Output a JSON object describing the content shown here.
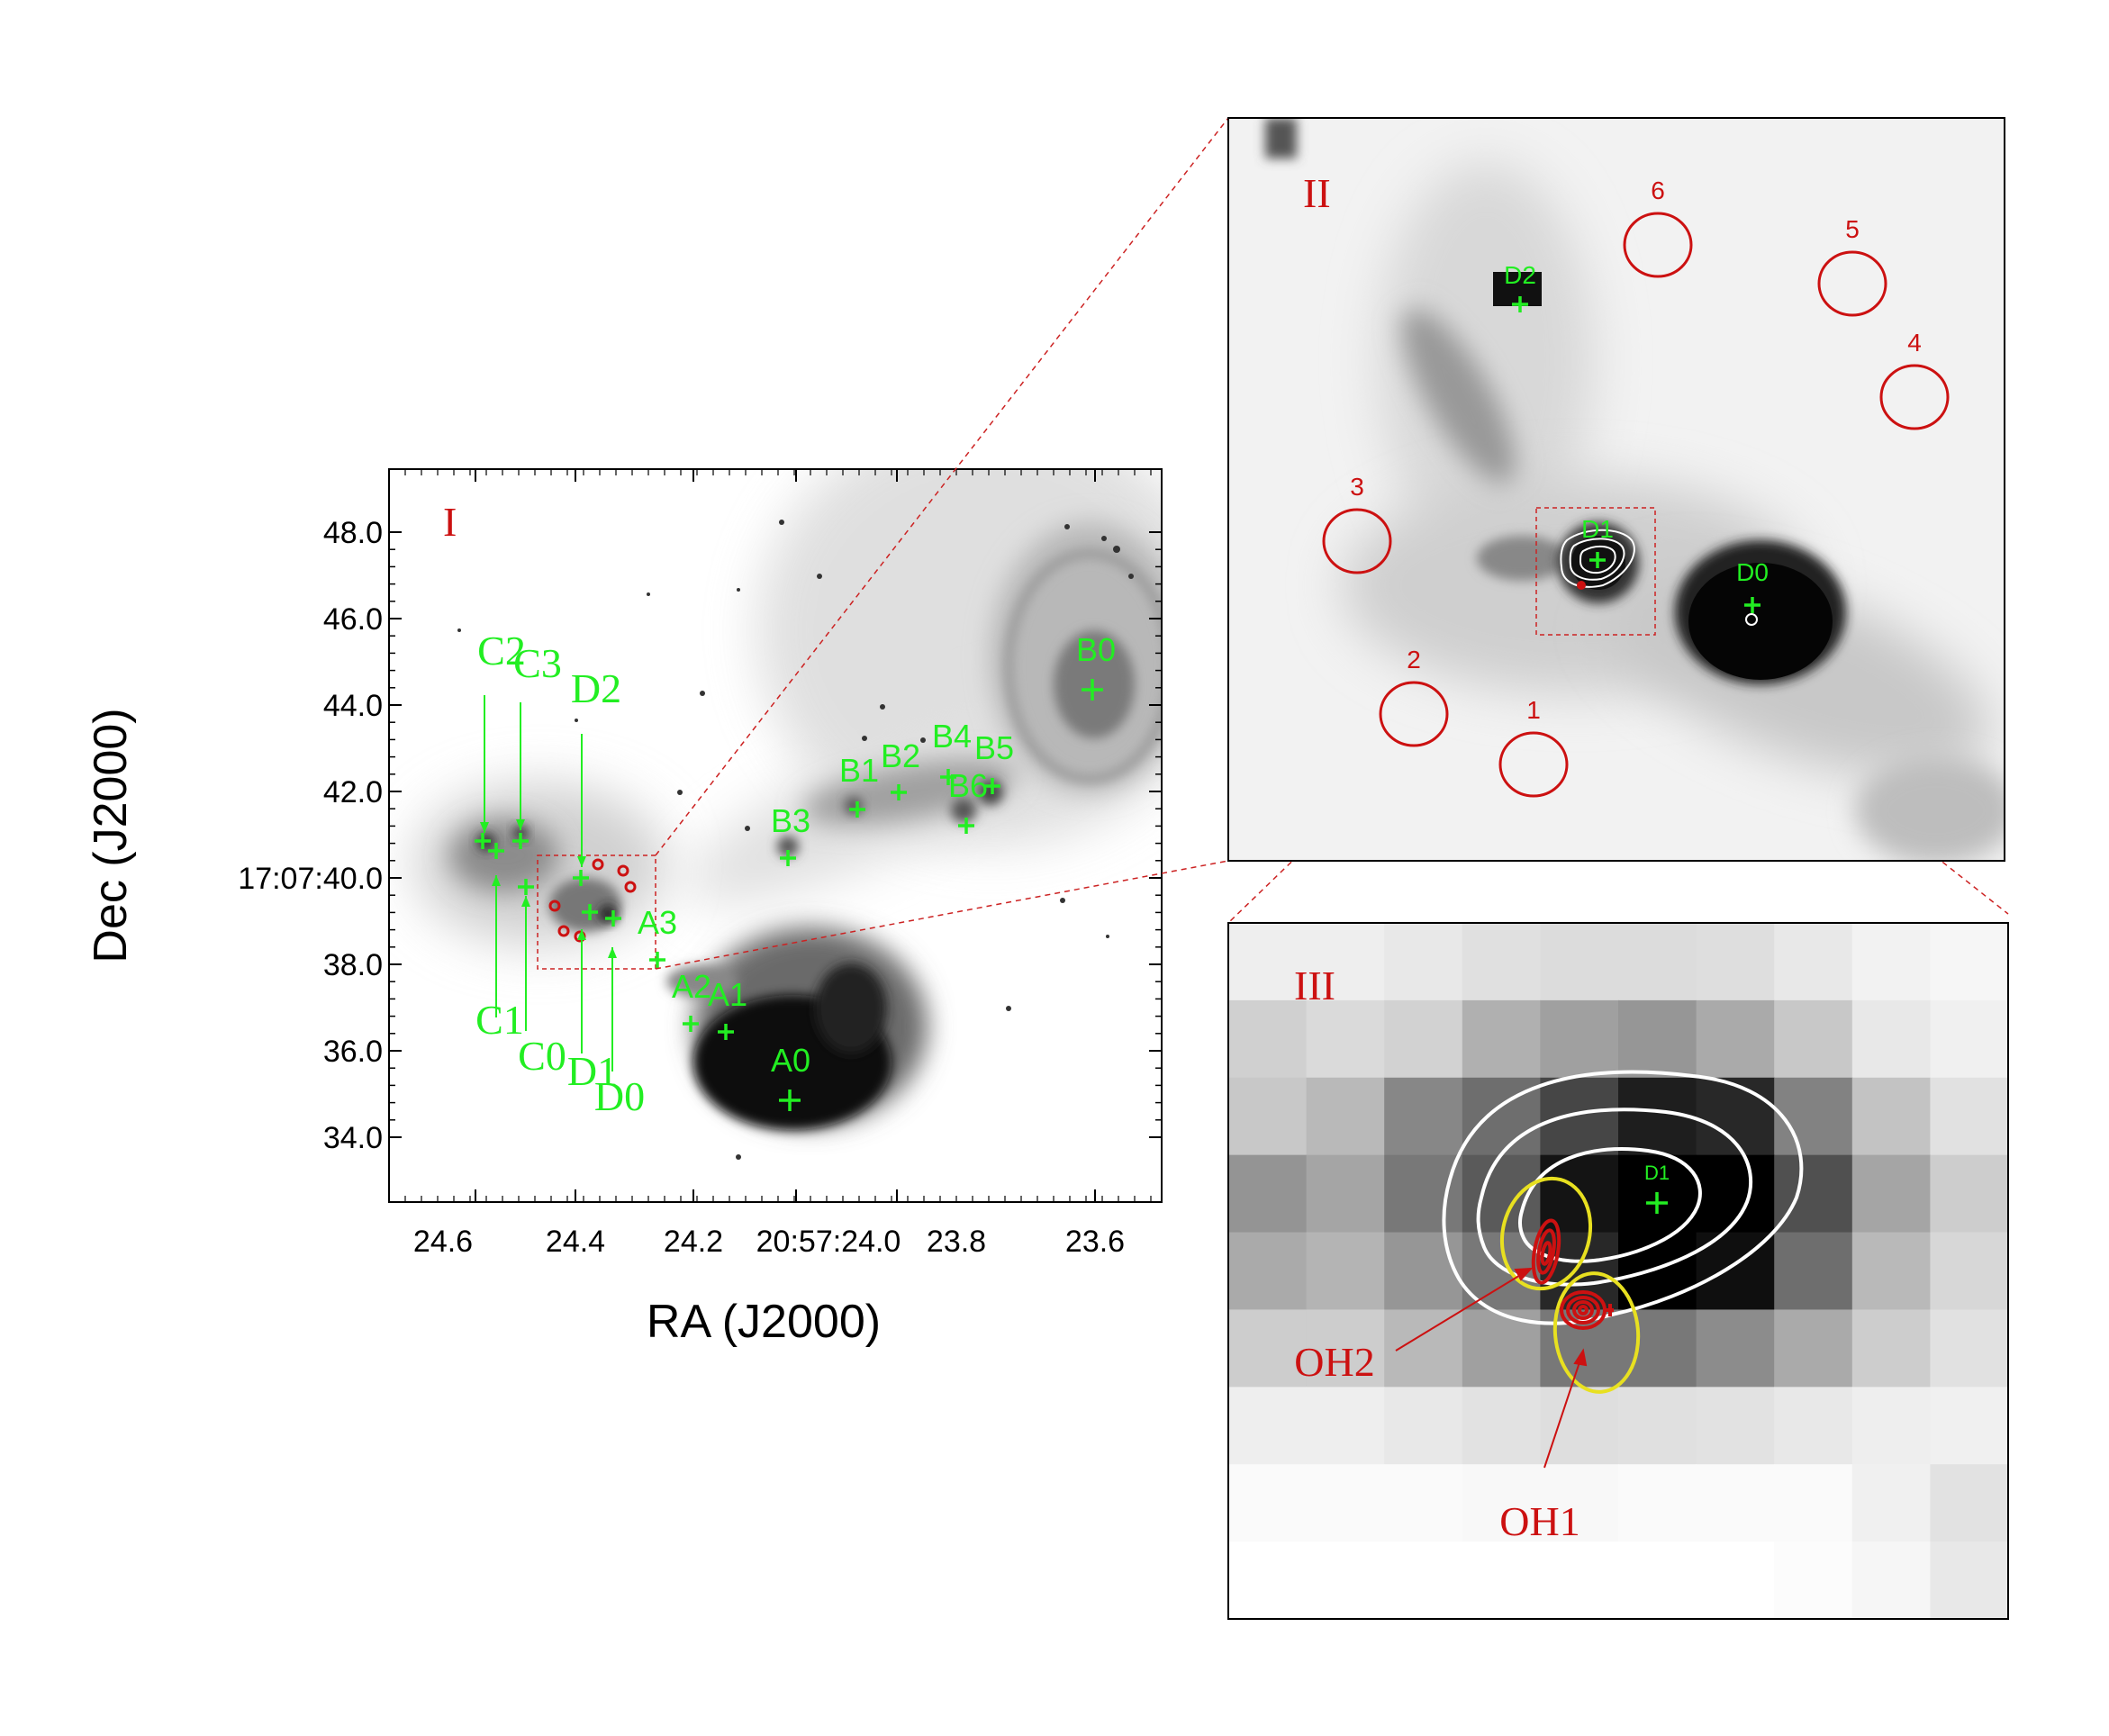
{
  "panels": {
    "I": {
      "label": "I"
    },
    "II": {
      "label": "II"
    },
    "III": {
      "label": "III"
    }
  },
  "axes": {
    "xlabel": "RA (J2000)",
    "ylabel": "Dec (J2000)",
    "x_ticks": [
      "24.6",
      "24.4",
      "24.2",
      "20:57:24.0",
      "23.8",
      "23.6"
    ],
    "y_ticks": [
      "48.0",
      "46.0",
      "44.0",
      "42.0",
      "17:07:40.0",
      "38.0",
      "36.0",
      "34.0"
    ]
  },
  "sources_panel1": [
    "C2",
    "C3",
    "D2",
    "B0",
    "B4",
    "B5",
    "B1",
    "B2",
    "B6",
    "B3",
    "A3",
    "A2",
    "A1",
    "A0",
    "C1",
    "C0",
    "D1",
    "D0"
  ],
  "panel2": {
    "sources": [
      "D2",
      "D1",
      "D0"
    ],
    "circles": [
      "1",
      "2",
      "3",
      "4",
      "5",
      "6"
    ]
  },
  "panel3": {
    "source": "D1",
    "masers": [
      "OH2",
      "OH1"
    ]
  },
  "colors": {
    "source_marker": "#22ee22",
    "maser": "#cc1111",
    "contour": "#ffffff",
    "ellipse": "#e8e020",
    "box": "#cc2222"
  }
}
